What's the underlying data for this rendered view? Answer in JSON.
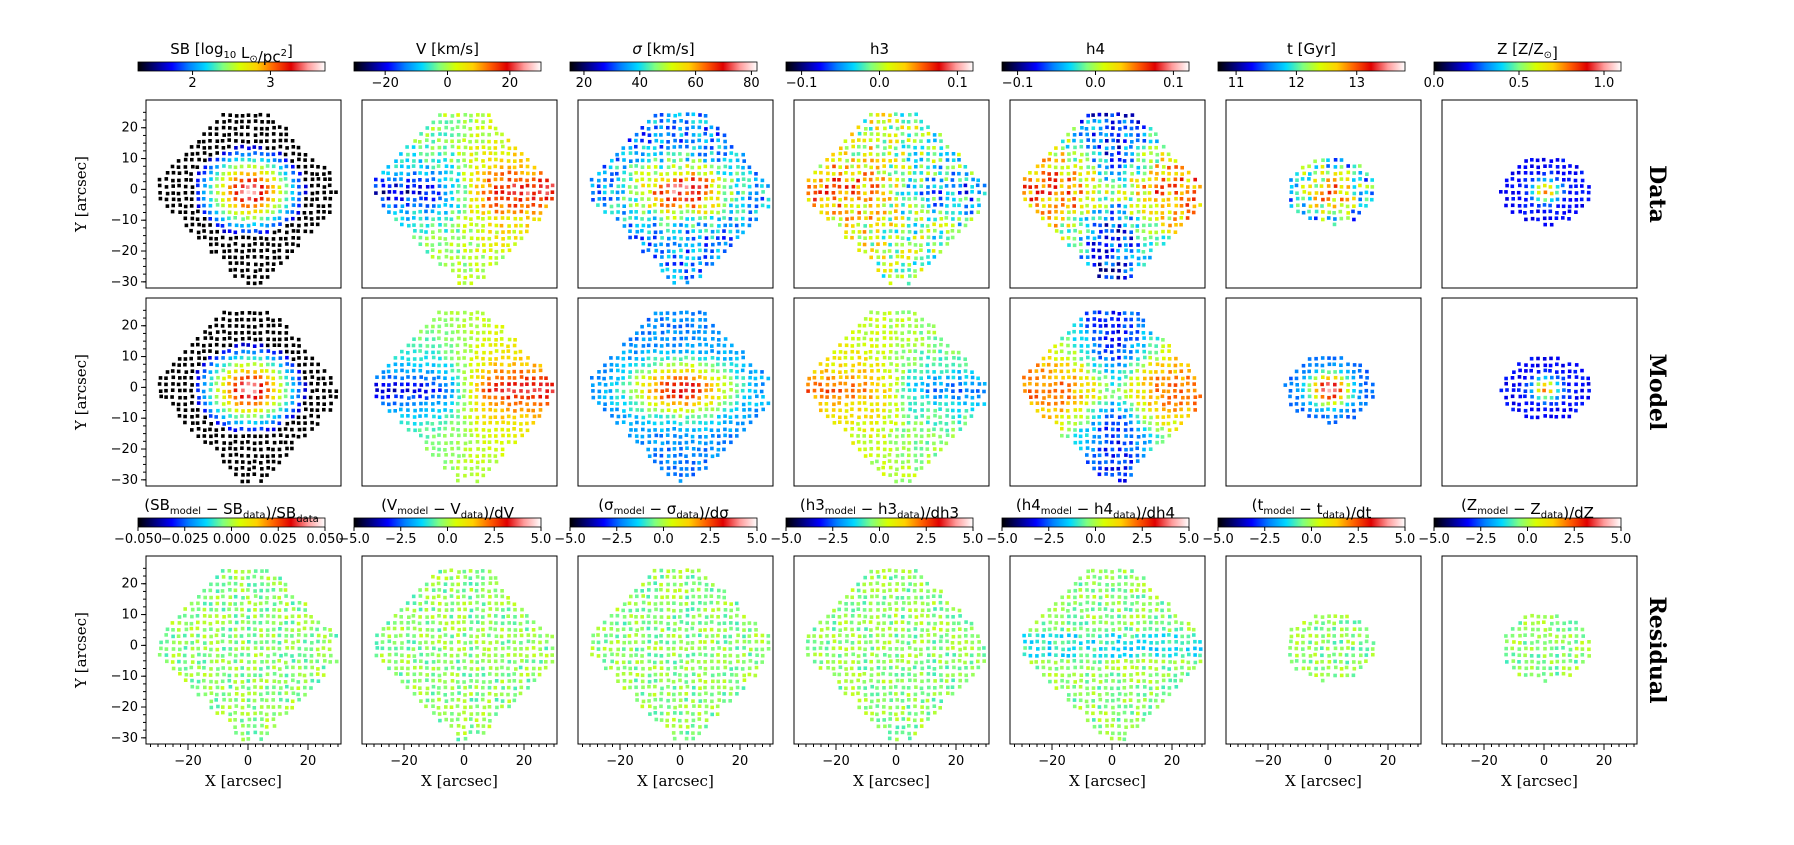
{
  "figure": {
    "background": "#ffffff",
    "colormap": "jet-like",
    "colormap_stops": [
      "#000000",
      "#00007f",
      "#0000ff",
      "#0080ff",
      "#00d8ff",
      "#7fff7f",
      "#d8ff00",
      "#ffd000",
      "#ff6000",
      "#e00000",
      "#ff9a9a",
      "#ffffff"
    ]
  },
  "chart_data": [
    {
      "type": "heatmap",
      "row": "Data",
      "maps": [
        {
          "title_parts": [
            [
              "SB [log",
              "normal"
            ],
            [
              "10",
              "sub"
            ],
            [
              " L",
              "normal"
            ],
            [
              "⊙",
              "sub"
            ],
            [
              "/pc",
              "normal"
            ],
            [
              "2",
              "sup"
            ],
            [
              "]",
              "normal"
            ]
          ],
          "colorbar": {
            "range": [
              1.3,
              3.7
            ],
            "ticks": [
              2,
              3
            ],
            "tick_labels": [
              "2",
              "3"
            ]
          }
        },
        {
          "title_parts": [
            [
              "V [km/s]",
              "normal"
            ]
          ],
          "colorbar": {
            "range": [
              -30,
              30
            ],
            "ticks": [
              -20,
              0,
              20
            ],
            "tick_labels": [
              "−20",
              "0",
              "20"
            ]
          }
        },
        {
          "title_parts": [
            [
              "σ",
              "italic"
            ],
            [
              " [km/s]",
              "normal"
            ]
          ],
          "colorbar": {
            "range": [
              15,
              82
            ],
            "ticks": [
              20,
              40,
              60,
              80
            ],
            "tick_labels": [
              "20",
              "40",
              "60",
              "80"
            ]
          }
        },
        {
          "title_parts": [
            [
              "h3",
              "normal"
            ]
          ],
          "colorbar": {
            "range": [
              -0.12,
              0.12
            ],
            "ticks": [
              -0.1,
              0.0,
              0.1
            ],
            "tick_labels": [
              "−0.1",
              "0.0",
              "0.1"
            ]
          }
        },
        {
          "title_parts": [
            [
              "h4",
              "normal"
            ]
          ],
          "colorbar": {
            "range": [
              -0.12,
              0.12
            ],
            "ticks": [
              -0.1,
              0.0,
              0.1
            ],
            "tick_labels": [
              "−0.1",
              "0.0",
              "0.1"
            ]
          }
        },
        {
          "title_parts": [
            [
              "t [Gyr]",
              "normal"
            ]
          ],
          "colorbar": {
            "range": [
              10.7,
              13.8
            ],
            "ticks": [
              11,
              12,
              13
            ],
            "tick_labels": [
              "11",
              "12",
              "13"
            ]
          }
        },
        {
          "title_parts": [
            [
              "Z [Z/Z",
              "normal"
            ],
            [
              "⊙",
              "sub"
            ],
            [
              "]",
              "normal"
            ]
          ],
          "colorbar": {
            "range": [
              0.0,
              1.1
            ],
            "ticks": [
              0.0,
              0.5,
              1.0
            ],
            "tick_labels": [
              "0.0",
              "0.5",
              "1.0"
            ]
          }
        }
      ]
    },
    {
      "type": "heatmap",
      "row": "Model",
      "maps": "same colorbars as Data row"
    },
    {
      "type": "heatmap",
      "row": "Residual",
      "maps": [
        {
          "title_parts": [
            [
              "(SB",
              "normal"
            ],
            [
              "model",
              "sub"
            ],
            [
              " − SB",
              "normal"
            ],
            [
              "data",
              "sub"
            ],
            [
              ")/SB",
              "normal"
            ],
            [
              "data",
              "sub"
            ]
          ],
          "colorbar": {
            "range": [
              -0.05,
              0.05
            ],
            "ticks": [
              -0.05,
              -0.025,
              0,
              0.025,
              0.05
            ],
            "tick_labels": [
              "−0.050",
              "−0.025",
              "0.000",
              "0.025",
              "0.050"
            ]
          }
        },
        {
          "title_parts": [
            [
              "(V",
              "normal"
            ],
            [
              "model",
              "sub"
            ],
            [
              " − V",
              "normal"
            ],
            [
              "data",
              "sub"
            ],
            [
              ")/dV",
              "normal"
            ]
          ],
          "colorbar": {
            "range": [
              -5,
              5
            ],
            "ticks": [
              -5,
              -2.5,
              0,
              2.5,
              5
            ],
            "tick_labels": [
              "−5.0",
              "−2.5",
              "0.0",
              "2.5",
              "5.0"
            ]
          }
        },
        {
          "title_parts": [
            [
              "(σ",
              "normal"
            ],
            [
              "model",
              "sub"
            ],
            [
              " − σ",
              "normal"
            ],
            [
              "data",
              "sub"
            ],
            [
              ")/dσ",
              "normal"
            ]
          ],
          "colorbar": {
            "range": [
              -5,
              5
            ],
            "ticks": [
              -5,
              -2.5,
              0,
              2.5,
              5
            ],
            "tick_labels": [
              "−5.0",
              "−2.5",
              "0.0",
              "2.5",
              "5.0"
            ]
          }
        },
        {
          "title_parts": [
            [
              "(h3",
              "normal"
            ],
            [
              "model",
              "sub"
            ],
            [
              " − h3",
              "normal"
            ],
            [
              "data",
              "sub"
            ],
            [
              ")/dh3",
              "normal"
            ]
          ],
          "colorbar": {
            "range": [
              -5,
              5
            ],
            "ticks": [
              -5,
              -2.5,
              0,
              2.5,
              5
            ],
            "tick_labels": [
              "−5.0",
              "−2.5",
              "0.0",
              "2.5",
              "5.0"
            ]
          }
        },
        {
          "title_parts": [
            [
              "(h4",
              "normal"
            ],
            [
              "model",
              "sub"
            ],
            [
              " − h4",
              "normal"
            ],
            [
              "data",
              "sub"
            ],
            [
              ")/dh4",
              "normal"
            ]
          ],
          "colorbar": {
            "range": [
              -5,
              5
            ],
            "ticks": [
              -5,
              -2.5,
              0,
              2.5,
              5
            ],
            "tick_labels": [
              "−5.0",
              "−2.5",
              "0.0",
              "2.5",
              "5.0"
            ]
          }
        },
        {
          "title_parts": [
            [
              "(t",
              "normal"
            ],
            [
              "model",
              "sub"
            ],
            [
              " − t",
              "normal"
            ],
            [
              "data",
              "sub"
            ],
            [
              ")/dt",
              "normal"
            ]
          ],
          "colorbar": {
            "range": [
              -5,
              5
            ],
            "ticks": [
              -5,
              -2.5,
              0,
              2.5,
              5
            ],
            "tick_labels": [
              "−5.0",
              "−2.5",
              "0.0",
              "2.5",
              "5.0"
            ]
          }
        },
        {
          "title_parts": [
            [
              "(Z",
              "normal"
            ],
            [
              "model",
              "sub"
            ],
            [
              " − Z",
              "normal"
            ],
            [
              "data",
              "sub"
            ],
            [
              ")/dZ",
              "normal"
            ]
          ],
          "colorbar": {
            "range": [
              -5,
              5
            ],
            "ticks": [
              -5,
              -2.5,
              0,
              2.5,
              5
            ],
            "tick_labels": [
              "−5.0",
              "−2.5",
              "0.0",
              "2.5",
              "5.0"
            ]
          }
        }
      ]
    }
  ],
  "axes": {
    "xlabel": "X [arcsec]",
    "ylabel": "Y [arcsec]",
    "xlim": [
      -34,
      31
    ],
    "ylim": [
      -32,
      29
    ],
    "xticks": [
      -20,
      0,
      20
    ],
    "xtick_labels": [
      "−20",
      "0",
      "20"
    ],
    "yticks": [
      20,
      10,
      0,
      -10,
      -20,
      -30
    ],
    "ytick_labels": [
      "20",
      "10",
      "0",
      "−10",
      "−20",
      "−30"
    ]
  },
  "row_labels": [
    "Data",
    "Model",
    "Residual"
  ],
  "column_fields": [
    "SB",
    "V",
    "σ",
    "h3",
    "h4",
    "t",
    "Z"
  ]
}
